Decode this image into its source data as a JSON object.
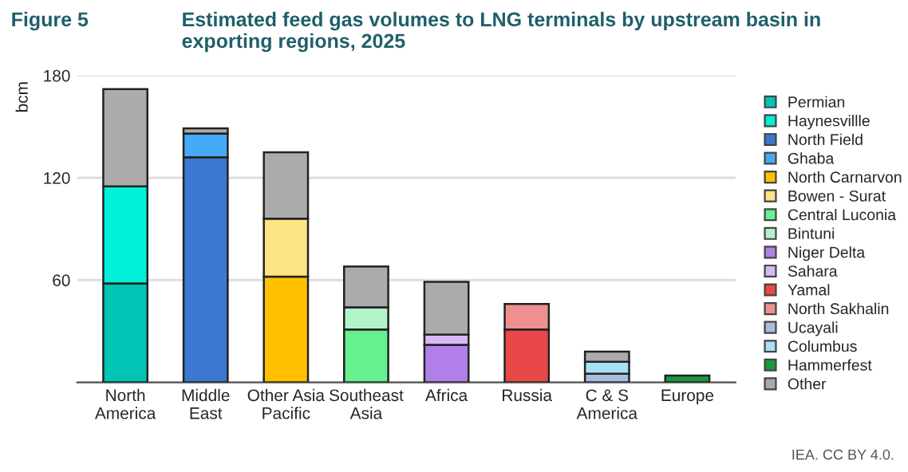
{
  "chart_data": {
    "type": "bar",
    "stacked": true,
    "title": "Estimated feed gas volumes to LNG terminals by upstream basin in exporting regions, 2025",
    "annotations": [
      "Figure 5",
      "IEA. CC BY 4.0."
    ],
    "ylabel": "bcm",
    "categories": [
      "North\nAmerica",
      "Middle\nEast",
      "Other Asia\nPacific",
      "Southeast\nAsia",
      "Africa",
      "Russia",
      "C & S\nAmerica",
      "Europe"
    ],
    "ylim": [
      0,
      180
    ],
    "yticks": [
      {
        "value": 0,
        "label": null
      },
      60,
      120,
      180
    ],
    "grid": "y",
    "legend": "right",
    "series": [
      {
        "name": "Permian",
        "color": "#00c5b5",
        "values": [
          58,
          null,
          null,
          null,
          null,
          null,
          null,
          null
        ]
      },
      {
        "name": "Haynesvillle",
        "color": "#00f0d8",
        "values": [
          57,
          null,
          null,
          null,
          null,
          null,
          null,
          null
        ]
      },
      {
        "name": "North Field",
        "color": "#3c78d0",
        "values": [
          null,
          132,
          null,
          null,
          null,
          null,
          null,
          null
        ]
      },
      {
        "name": "Ghaba",
        "color": "#44aaf8",
        "values": [
          null,
          14,
          null,
          null,
          null,
          null,
          null,
          null
        ]
      },
      {
        "name": "North Carnarvon",
        "color": "#ffc000",
        "values": [
          null,
          null,
          62,
          null,
          null,
          null,
          null,
          null
        ]
      },
      {
        "name": "Bowen - Surat",
        "color": "#fde482",
        "values": [
          null,
          null,
          34,
          null,
          null,
          null,
          null,
          null
        ]
      },
      {
        "name": "Central Luconia",
        "color": "#66f090",
        "values": [
          null,
          null,
          null,
          31,
          null,
          null,
          null,
          null
        ]
      },
      {
        "name": "Bintuni",
        "color": "#b0f5c8",
        "values": [
          null,
          null,
          null,
          13,
          null,
          null,
          null,
          null
        ]
      },
      {
        "name": "Niger Delta",
        "color": "#b080e8",
        "values": [
          null,
          null,
          null,
          null,
          22,
          null,
          null,
          null
        ]
      },
      {
        "name": "Sahara",
        "color": "#d6b8f8",
        "values": [
          null,
          null,
          null,
          null,
          6,
          null,
          null,
          null
        ]
      },
      {
        "name": "Yamal",
        "color": "#e84848",
        "values": [
          null,
          null,
          null,
          null,
          null,
          31,
          null,
          null
        ]
      },
      {
        "name": "North Sakhalin",
        "color": "#ee9090",
        "values": [
          null,
          null,
          null,
          null,
          null,
          15,
          null,
          null
        ]
      },
      {
        "name": "Ucayali",
        "color": "#a8bce0",
        "values": [
          null,
          null,
          null,
          null,
          null,
          null,
          5,
          null
        ]
      },
      {
        "name": "Columbus",
        "color": "#a8e0f8",
        "values": [
          null,
          null,
          null,
          null,
          null,
          null,
          7,
          null
        ]
      },
      {
        "name": "Hammerfest",
        "color": "#1a9a40",
        "values": [
          null,
          null,
          null,
          null,
          null,
          null,
          null,
          4
        ]
      },
      {
        "name": "Other",
        "color": "#ababab",
        "values": [
          57,
          3,
          39,
          24,
          31,
          null,
          6,
          null
        ]
      }
    ]
  }
}
